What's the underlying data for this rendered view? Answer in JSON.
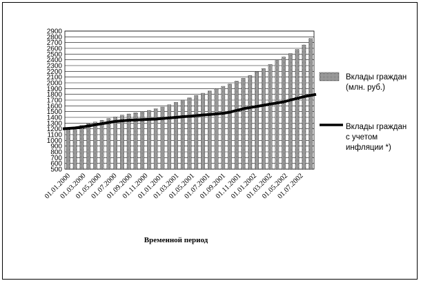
{
  "chart_data": {
    "type": "bar",
    "title": "",
    "xlabel": "Временной период",
    "ylabel": "",
    "ylim": [
      500,
      2900
    ],
    "y_ticks": [
      500,
      600,
      700,
      800,
      900,
      1000,
      1100,
      1200,
      1300,
      1400,
      1500,
      1600,
      1700,
      1800,
      1900,
      2000,
      2100,
      2200,
      2300,
      2400,
      2500,
      2600,
      2700,
      2800,
      2900
    ],
    "grid": "horizontal",
    "legend_position": "right",
    "x_tick_labels": [
      "01.01.2000",
      "01.03.2000",
      "01.05.2000",
      "01.07.2000",
      "01.09.2000",
      "01.11.2000",
      "01.01.2001",
      "01.03.2001",
      "01.05.2001",
      "01.07.2001",
      "01.09.2001",
      "01.11.2001",
      "01.01.2002",
      "01.03.2002",
      "01.05.2002",
      "01.07.2002"
    ],
    "series": [
      {
        "name": "Вклады граждан (млн. руб.)",
        "legend_lines": [
          "Вклады граждан",
          "(млн. руб.)"
        ],
        "kind": "bar",
        "pattern": "dotted-hatch",
        "values": [
          1200,
          1230,
          1260,
          1290,
          1320,
          1350,
          1380,
          1410,
          1440,
          1460,
          1480,
          1500,
          1520,
          1550,
          1580,
          1620,
          1660,
          1700,
          1740,
          1780,
          1820,
          1860,
          1900,
          1940,
          1980,
          2030,
          2080,
          2130,
          2190,
          2250,
          2320,
          2390,
          2450,
          2510,
          2580,
          2660,
          2770
        ]
      },
      {
        "name": "Вклады граждан с учетом инфляции *)",
        "legend_lines": [
          "Вклады граждан",
          "с учетом",
          "инфляции *)"
        ],
        "kind": "line",
        "color": "#000000",
        "values": [
          1200,
          1215,
          1230,
          1250,
          1270,
          1290,
          1310,
          1330,
          1340,
          1350,
          1355,
          1360,
          1365,
          1370,
          1380,
          1390,
          1400,
          1410,
          1420,
          1430,
          1440,
          1450,
          1460,
          1470,
          1490,
          1520,
          1550,
          1570,
          1590,
          1610,
          1630,
          1650,
          1670,
          1700,
          1730,
          1760,
          1800
        ]
      }
    ]
  }
}
